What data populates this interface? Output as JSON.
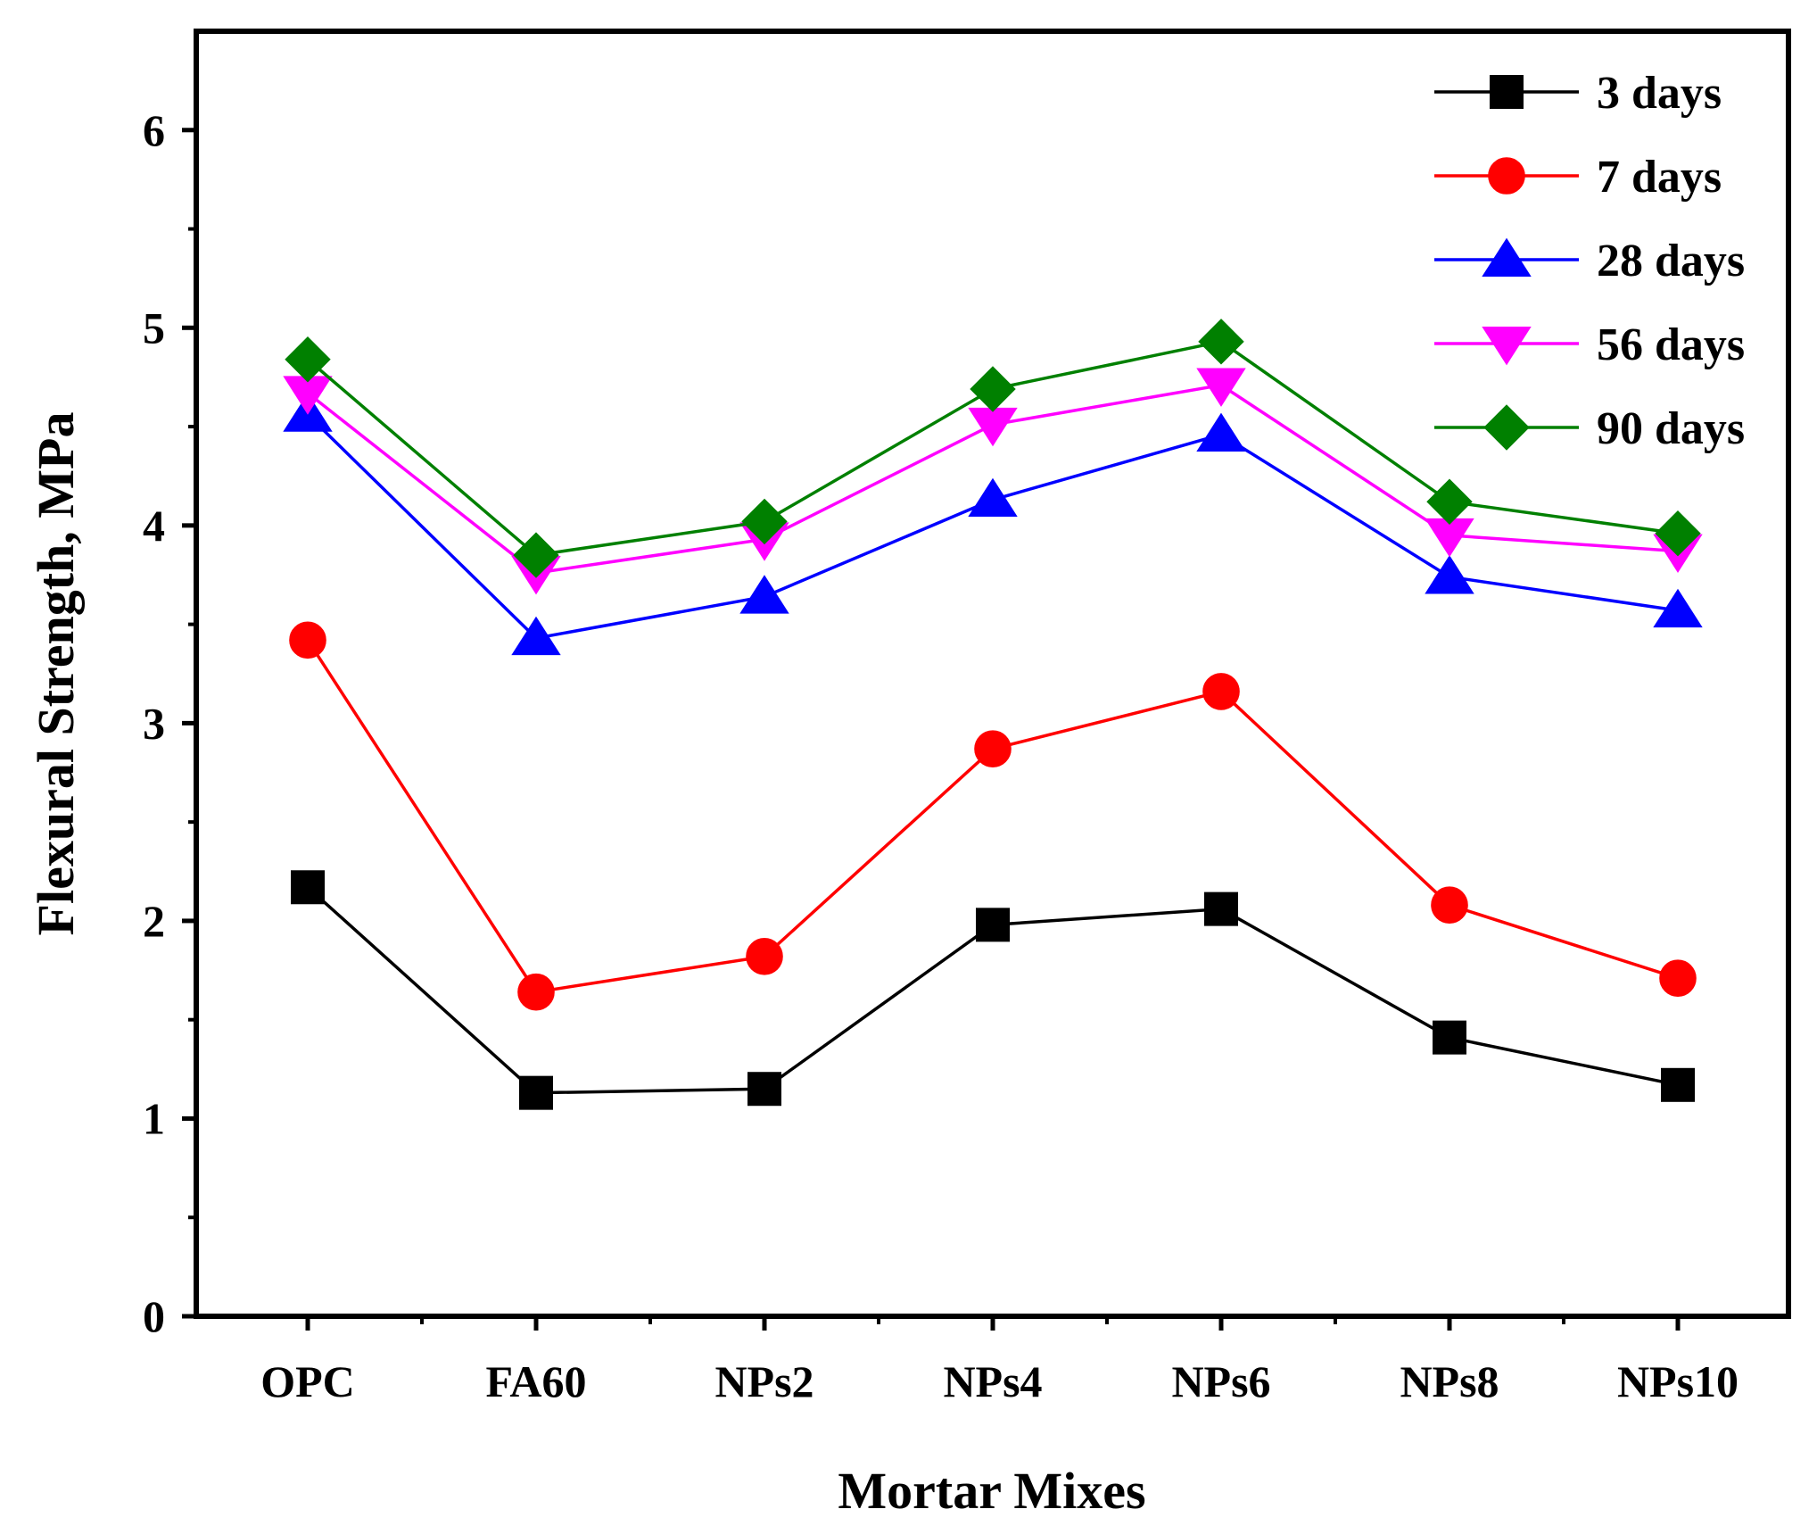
{
  "chart_data": {
    "type": "line",
    "title": "",
    "xlabel": "Mortar Mixes",
    "ylabel": "Flexural Strength, MPa",
    "categories": [
      "OPC",
      "FA60",
      "NPs2",
      "NPs4",
      "NPs6",
      "NPs8",
      "NPs10"
    ],
    "ylim": [
      0,
      6.5
    ],
    "yticks": [
      0,
      1,
      2,
      3,
      4,
      5,
      6
    ],
    "ytick_labels": [
      "0",
      "1",
      "2",
      "3",
      "4",
      "5",
      "6"
    ],
    "legend_position": "top-right",
    "grid": false,
    "series": [
      {
        "name": "3 days",
        "label": "3 days",
        "color": "#000000",
        "marker": "square",
        "values": [
          2.17,
          1.13,
          1.15,
          1.98,
          2.06,
          1.41,
          1.17
        ]
      },
      {
        "name": "7 days",
        "label": "7 days",
        "color": "#ff0000",
        "marker": "circle",
        "values": [
          3.42,
          1.64,
          1.82,
          2.87,
          3.16,
          2.08,
          1.71
        ]
      },
      {
        "name": "28 days",
        "label": "28 days",
        "color": "#0000ff",
        "marker": "triangle-up",
        "values": [
          4.56,
          3.43,
          3.64,
          4.13,
          4.46,
          3.74,
          3.57
        ]
      },
      {
        "name": "56 days",
        "label": "56 days",
        "color": "#ff00ff",
        "marker": "triangle-down",
        "values": [
          4.67,
          3.76,
          3.93,
          4.51,
          4.71,
          3.95,
          3.87
        ]
      },
      {
        "name": "90 days",
        "label": "90 days",
        "color": "#008000",
        "marker": "diamond",
        "values": [
          4.84,
          3.85,
          4.02,
          4.69,
          4.93,
          4.12,
          3.96
        ]
      }
    ]
  }
}
